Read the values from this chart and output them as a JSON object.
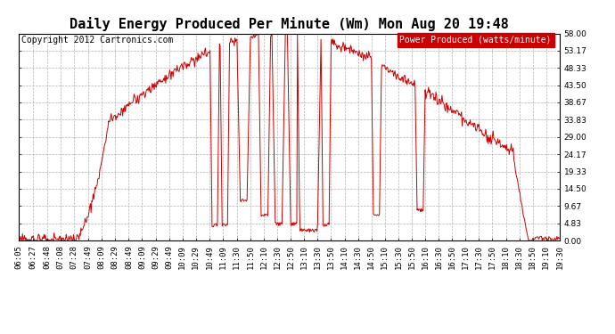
{
  "title": "Daily Energy Produced Per Minute (Wm) Mon Aug 20 19:48",
  "copyright": "Copyright 2012 Cartronics.com",
  "legend_label": "Power Produced (watts/minute)",
  "legend_bg": "#cc0000",
  "legend_text_color": "#ffffff",
  "line_color": "#cc0000",
  "background_color": "#ffffff",
  "grid_color": "#aaaaaa",
  "y_ticks": [
    0.0,
    4.83,
    9.67,
    14.5,
    19.33,
    24.17,
    29.0,
    33.83,
    38.67,
    43.5,
    48.33,
    53.17,
    58.0
  ],
  "x_tick_labels": [
    "06:05",
    "06:27",
    "06:48",
    "07:08",
    "07:28",
    "07:49",
    "08:09",
    "08:29",
    "08:49",
    "09:09",
    "09:29",
    "09:49",
    "10:09",
    "10:29",
    "10:49",
    "11:09",
    "11:30",
    "11:50",
    "12:10",
    "12:30",
    "12:50",
    "13:10",
    "13:30",
    "13:50",
    "14:10",
    "14:30",
    "14:50",
    "15:10",
    "15:30",
    "15:50",
    "16:10",
    "16:30",
    "16:50",
    "17:10",
    "17:30",
    "17:50",
    "18:10",
    "18:30",
    "18:50",
    "19:10",
    "19:30"
  ],
  "ymin": 0,
  "ymax": 58.0,
  "title_fontsize": 11,
  "copyright_fontsize": 7,
  "tick_fontsize": 6.5,
  "legend_fontsize": 7
}
